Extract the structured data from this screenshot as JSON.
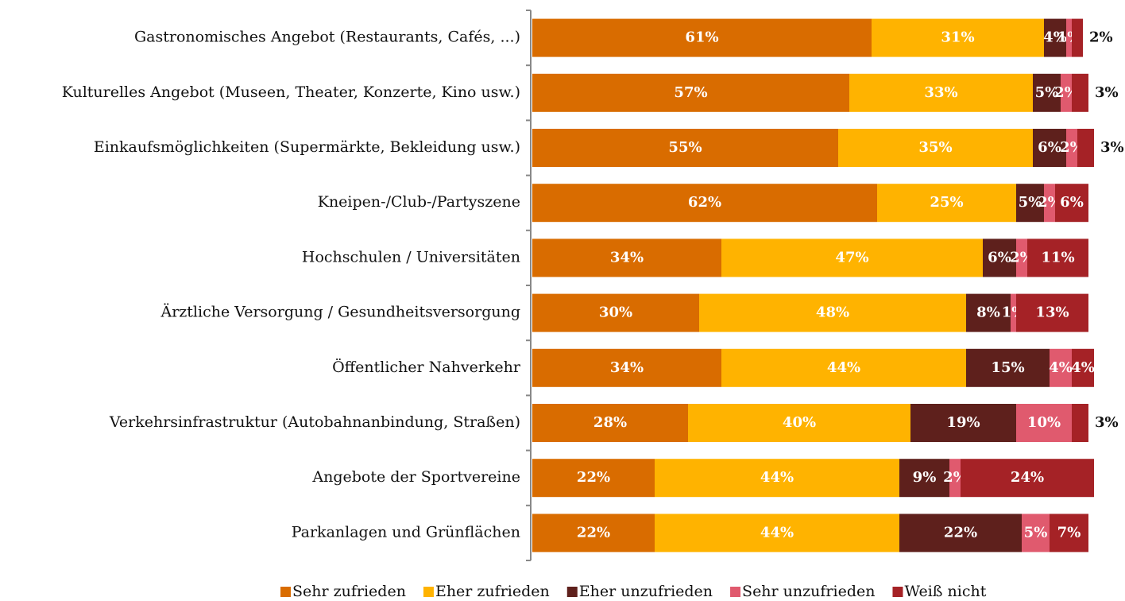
{
  "chart_data": {
    "type": "stacked-bar-horizontal",
    "categories": [
      "Gastronomisches Angebot (Restaurants, Cafés, ...)",
      "Kulturelles Angebot (Museen, Theater, Konzerte, Kino usw.)",
      "Einkaufsmöglichkeiten (Supermärkte, Bekleidung usw.)",
      "Kneipen-/Club-/Partyszene",
      "Hochschulen / Universitäten",
      "Ärztliche Versorgung / Gesundheitsversorgung",
      "Öffentlicher Nahverkehr",
      "Verkehrsinfrastruktur (Autobahnanbindung, Straßen)",
      "Angebote der Sportvereine",
      "Parkanlagen und Grünflächen"
    ],
    "series": [
      {
        "name": "Sehr zufrieden",
        "color": "#d96c00",
        "values": [
          61,
          57,
          55,
          62,
          34,
          30,
          34,
          28,
          22,
          22
        ],
        "value_labels": [
          "61%",
          "57%",
          "55%",
          "62%",
          "34%",
          "30%",
          "34%",
          "28%",
          "22%",
          "22%"
        ]
      },
      {
        "name": "Eher zufrieden",
        "color": "#ffb300",
        "values": [
          31,
          33,
          35,
          25,
          47,
          48,
          44,
          40,
          44,
          44
        ],
        "value_labels": [
          "31%",
          "33%",
          "35%",
          "25%",
          "47%",
          "48%",
          "44%",
          "40%",
          "44%",
          "44%"
        ]
      },
      {
        "name": "Eher unzufrieden",
        "color": "#5e201c",
        "values": [
          4,
          5,
          6,
          5,
          6,
          8,
          15,
          19,
          9,
          22
        ],
        "value_labels": [
          "4%",
          "5%",
          "6%",
          "5%",
          "6%",
          "8%",
          "15%",
          "19%",
          "9%",
          "22%"
        ]
      },
      {
        "name": "Sehr unzufrieden",
        "color": "#e05a6e",
        "values": [
          1,
          2,
          2,
          2,
          2,
          1,
          4,
          10,
          2,
          5
        ],
        "value_labels": [
          "1%",
          "2%",
          "2%",
          "2%",
          "2%",
          "1%",
          "4%",
          "10%",
          "2%",
          "5%"
        ]
      },
      {
        "name": "Weiß nicht",
        "color": "#a52226",
        "values": [
          2,
          3,
          3,
          6,
          11,
          13,
          4,
          3,
          24,
          7
        ],
        "value_labels": [
          "2%",
          "3%",
          "3%",
          "6%",
          "11%",
          "13%",
          "4%",
          "3%",
          "24%",
          "7%"
        ]
      }
    ],
    "xlim": [
      0,
      100
    ],
    "legend": "bottom"
  }
}
